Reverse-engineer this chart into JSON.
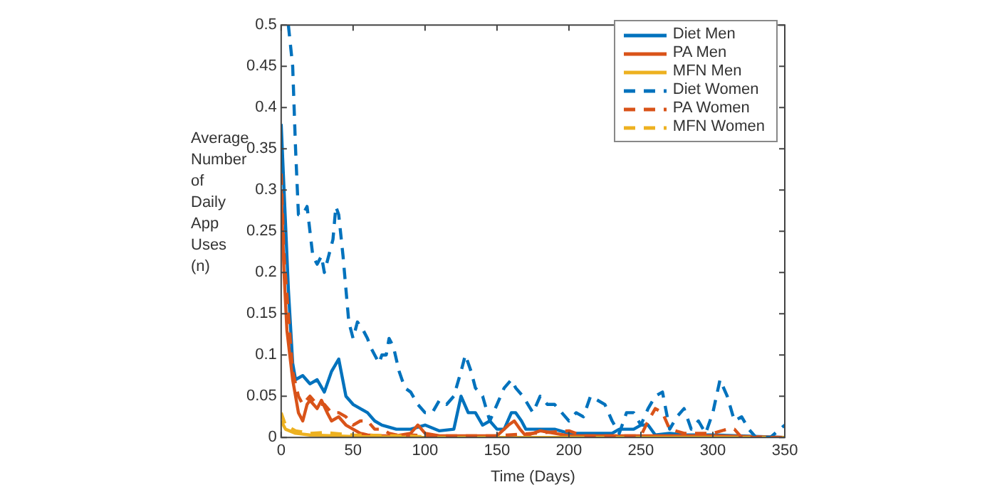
{
  "chart_data": {
    "type": "line",
    "xlabel": "Time (Days)",
    "ylabel": "Average Number of Daily App Uses (n)",
    "xlim": [
      0,
      350
    ],
    "ylim": [
      0,
      0.5
    ],
    "xticks": [
      0,
      50,
      100,
      150,
      200,
      250,
      300,
      350
    ],
    "yticks": [
      0,
      0.05,
      0.1,
      0.15,
      0.2,
      0.25,
      0.3,
      0.35,
      0.4,
      0.45,
      0.5
    ],
    "grid": false,
    "legend": "top right",
    "marker": "none",
    "series": [
      {
        "name": "Diet Men",
        "color": "#0072bd",
        "line_style": "solid",
        "x": [
          0,
          2,
          5,
          8,
          10,
          15,
          20,
          25,
          30,
          35,
          40,
          45,
          50,
          55,
          60,
          65,
          70,
          80,
          90,
          100,
          110,
          120,
          125,
          130,
          135,
          140,
          145,
          150,
          155,
          160,
          163,
          167,
          170,
          175,
          190,
          200,
          230,
          235,
          245,
          250,
          255,
          260,
          270,
          280,
          300,
          350
        ],
        "values": [
          0.38,
          0.3,
          0.18,
          0.09,
          0.07,
          0.075,
          0.065,
          0.07,
          0.055,
          0.08,
          0.095,
          0.05,
          0.04,
          0.035,
          0.03,
          0.02,
          0.015,
          0.01,
          0.01,
          0.015,
          0.008,
          0.01,
          0.05,
          0.03,
          0.03,
          0.015,
          0.02,
          0.01,
          0.01,
          0.03,
          0.03,
          0.02,
          0.01,
          0.01,
          0.01,
          0.005,
          0.005,
          0.01,
          0.01,
          0.015,
          0.015,
          0.003,
          0.005,
          0.003,
          0.003,
          0
        ]
      },
      {
        "name": "PA Men",
        "color": "#d95319",
        "line_style": "solid",
        "x": [
          0,
          2,
          4,
          6,
          8,
          10,
          12,
          15,
          18,
          20,
          25,
          28,
          32,
          35,
          40,
          45,
          50,
          55,
          60,
          70,
          80,
          90,
          95,
          100,
          110,
          150,
          158,
          162,
          166,
          170,
          180,
          190,
          200,
          300,
          350
        ],
        "values": [
          0.3,
          0.2,
          0.13,
          0.1,
          0.07,
          0.05,
          0.03,
          0.02,
          0.04,
          0.045,
          0.035,
          0.045,
          0.03,
          0.02,
          0.025,
          0.015,
          0.01,
          0.005,
          0.003,
          0.002,
          0.002,
          0.005,
          0.015,
          0.005,
          0.002,
          0.002,
          0.015,
          0.02,
          0.01,
          0.002,
          0.008,
          0.005,
          0.002,
          0.002,
          0
        ]
      },
      {
        "name": "MFN Men",
        "color": "#edb120",
        "line_style": "solid",
        "x": [
          0,
          3,
          10,
          20,
          50,
          100,
          350
        ],
        "values": [
          0.02,
          0.01,
          0.005,
          0.003,
          0.001,
          0,
          0
        ]
      },
      {
        "name": "Diet Women",
        "color": "#0072bd",
        "line_style": "dashed",
        "x": [
          5,
          8,
          10,
          12,
          15,
          18,
          20,
          22,
          25,
          28,
          30,
          33,
          36,
          38,
          40,
          43,
          45,
          47,
          50,
          53,
          57,
          60,
          62,
          65,
          68,
          70,
          73,
          75,
          78,
          82,
          86,
          90,
          95,
          100,
          105,
          110,
          115,
          120,
          125,
          128,
          132,
          135,
          140,
          145,
          150,
          155,
          160,
          163,
          168,
          175,
          180,
          185,
          190,
          195,
          200,
          205,
          210,
          215,
          220,
          225,
          230,
          235,
          240,
          245,
          250,
          255,
          260,
          265,
          270,
          275,
          280,
          285,
          290,
          295,
          300,
          305,
          310,
          315,
          320,
          325,
          330,
          340,
          350
        ],
        "values": [
          0.5,
          0.45,
          0.35,
          0.27,
          0.27,
          0.28,
          0.25,
          0.22,
          0.21,
          0.22,
          0.2,
          0.22,
          0.24,
          0.28,
          0.27,
          0.22,
          0.18,
          0.14,
          0.12,
          0.14,
          0.13,
          0.12,
          0.11,
          0.1,
          0.09,
          0.1,
          0.1,
          0.12,
          0.11,
          0.08,
          0.06,
          0.055,
          0.04,
          0.03,
          0.03,
          0.045,
          0.04,
          0.05,
          0.08,
          0.1,
          0.08,
          0.06,
          0.05,
          0.02,
          0.04,
          0.06,
          0.07,
          0.06,
          0.05,
          0.03,
          0.05,
          0.04,
          0.04,
          0.03,
          0.02,
          0.03,
          0.025,
          0.05,
          0.045,
          0.04,
          0.02,
          0.005,
          0.03,
          0.03,
          0.015,
          0.035,
          0.05,
          0.055,
          0.01,
          0.025,
          0.035,
          0.01,
          0.02,
          0.005,
          0.03,
          0.07,
          0.05,
          0.02,
          0.025,
          0.01,
          0,
          0,
          0.015
        ]
      },
      {
        "name": "PA Women",
        "color": "#d95319",
        "line_style": "dashed",
        "x": [
          0,
          2,
          5,
          8,
          12,
          15,
          20,
          25,
          30,
          35,
          40,
          45,
          50,
          55,
          60,
          65,
          70,
          75,
          80,
          90,
          100,
          150,
          200,
          210,
          250,
          255,
          260,
          265,
          270,
          280,
          300,
          310,
          315,
          320,
          350
        ],
        "values": [
          0.32,
          0.22,
          0.15,
          0.08,
          0.05,
          0.04,
          0.05,
          0.04,
          0.04,
          0.03,
          0.03,
          0.025,
          0.015,
          0.02,
          0.02,
          0.01,
          0.01,
          0.005,
          0.003,
          0.003,
          0.002,
          0.002,
          0.008,
          0.002,
          0.002,
          0.02,
          0.035,
          0.03,
          0.01,
          0.005,
          0.005,
          0.01,
          0.01,
          0,
          0
        ]
      },
      {
        "name": "MFN Women",
        "color": "#edb120",
        "line_style": "dashed",
        "x": [
          0,
          3,
          10,
          20,
          30,
          50,
          80,
          100
        ],
        "values": [
          0.03,
          0.015,
          0.008,
          0.005,
          0.006,
          0.003,
          0.002,
          0.001
        ]
      }
    ]
  }
}
